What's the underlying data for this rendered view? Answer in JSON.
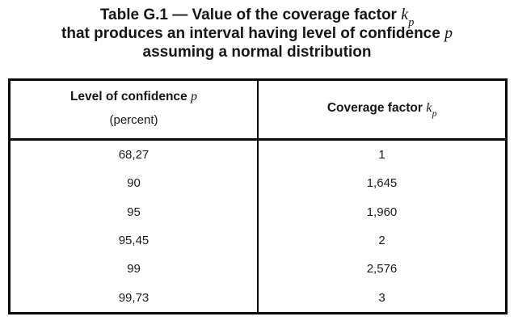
{
  "title": {
    "line1": {
      "text": "Table G.1 — Value of the coverage factor ",
      "var": "k",
      "var_subscript": "p"
    },
    "line2": {
      "text": "that produces an interval having level of confidence ",
      "var": "p"
    },
    "line3": {
      "text": "assuming a normal distribution"
    }
  },
  "table": {
    "header": {
      "confidence_label": "Level of confidence ",
      "confidence_var": "p",
      "confidence_unit": "(percent)",
      "factor_label": "Coverage factor ",
      "factor_var": "k",
      "factor_var_subscript": "p"
    },
    "rows": [
      {
        "confidence": "68,27",
        "factor": "1"
      },
      {
        "confidence": "90",
        "factor": "1,645"
      },
      {
        "confidence": "95",
        "factor": "1,960"
      },
      {
        "confidence": "95,45",
        "factor": "2"
      },
      {
        "confidence": "99",
        "factor": "2,576"
      },
      {
        "confidence": "99,73",
        "factor": "3"
      }
    ]
  },
  "chart_data": {
    "type": "table",
    "title": "Table G.1 — Value of the coverage factor kp that produces an interval having level of confidence p assuming a normal distribution",
    "columns": [
      "Level of confidence p (percent)",
      "Coverage factor kp"
    ],
    "rows": [
      [
        "68,27",
        "1"
      ],
      [
        "90",
        "1,645"
      ],
      [
        "95",
        "1,960"
      ],
      [
        "95,45",
        "2"
      ],
      [
        "99",
        "2,576"
      ],
      [
        "99,73",
        "3"
      ]
    ]
  },
  "colors": {
    "background": "#fefefe",
    "table_background": "#ffffff",
    "border": "#0a0a0a",
    "text": "#161616"
  }
}
